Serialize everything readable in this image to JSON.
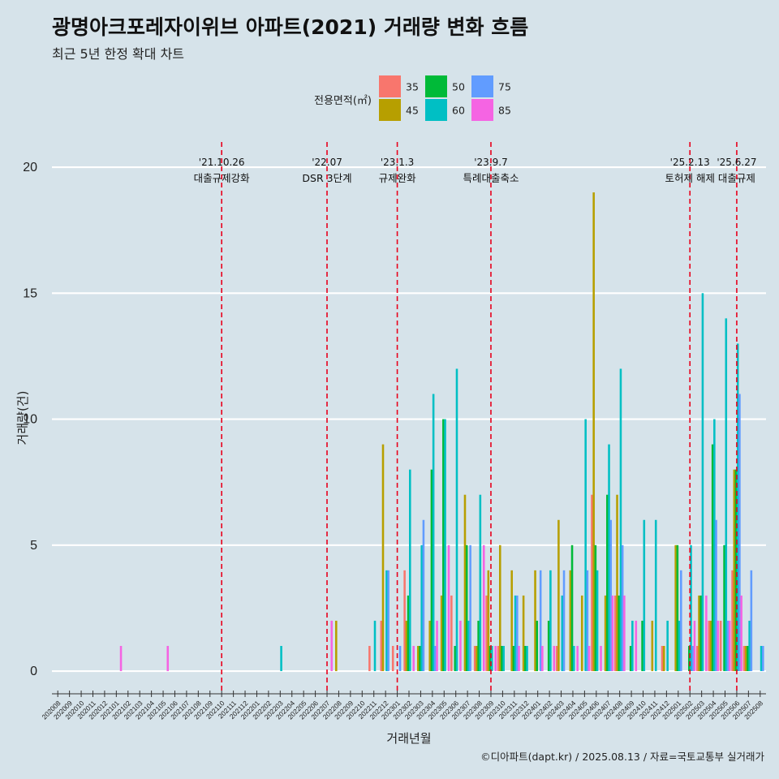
{
  "title": "광명아크포레자이위브 아파트(2021) 거래량 변화 흐름",
  "subtitle": "최근 5년 한정 확대 차트",
  "caption": "©디아파트(dapt.kr) / 2025.08.13 / 자료=국토교통부 실거래가",
  "chart_data": {
    "type": "bar",
    "xlabel": "거래년월",
    "ylabel": "거래량(건)",
    "ylim": [
      -0.9,
      21
    ],
    "yticks": [
      0,
      5,
      10,
      15,
      20
    ],
    "legend": {
      "title": "전용면적(㎡)",
      "position": "top",
      "entries": [
        {
          "name": "35",
          "color": "#F8766D"
        },
        {
          "name": "45",
          "color": "#B79F00"
        },
        {
          "name": "50",
          "color": "#00BA38"
        },
        {
          "name": "60",
          "color": "#00BFC4"
        },
        {
          "name": "75",
          "color": "#619CFF"
        },
        {
          "name": "85",
          "color": "#F564E3"
        }
      ]
    },
    "categories": [
      "202008",
      "202009",
      "202010",
      "202011",
      "202012",
      "202101",
      "202102",
      "202103",
      "202104",
      "202105",
      "202106",
      "202107",
      "202108",
      "202109",
      "202110",
      "202111",
      "202112",
      "202201",
      "202202",
      "202203",
      "202204",
      "202205",
      "202206",
      "202207",
      "202208",
      "202209",
      "202210",
      "202211",
      "202212",
      "202301",
      "202302",
      "202303",
      "202304",
      "202305",
      "202306",
      "202307",
      "202308",
      "202309",
      "202310",
      "202311",
      "202312",
      "202401",
      "202402",
      "202403",
      "202404",
      "202405",
      "202406",
      "202407",
      "202408",
      "202409",
      "202410",
      "202411",
      "202412",
      "202501",
      "202502",
      "202503",
      "202504",
      "202505",
      "202506",
      "202507",
      "202508"
    ],
    "series": [
      {
        "name": "35",
        "values": [
          0,
          0,
          0,
          0,
          0,
          0,
          0,
          0,
          0,
          0,
          0,
          0,
          0,
          0,
          0,
          0,
          0,
          0,
          0,
          0,
          0,
          0,
          0,
          0,
          0,
          0,
          0,
          1,
          2,
          1,
          4,
          0,
          0,
          0,
          3,
          0,
          1,
          3,
          1,
          0,
          0,
          0,
          0,
          1,
          0,
          0,
          7,
          0,
          3,
          0,
          0,
          0,
          1,
          0,
          0,
          1,
          2,
          2,
          4,
          1,
          0
        ]
      },
      {
        "name": "45",
        "values": [
          0,
          0,
          0,
          0,
          0,
          0,
          0,
          0,
          0,
          0,
          0,
          0,
          0,
          0,
          0,
          0,
          0,
          0,
          0,
          0,
          0,
          0,
          0,
          0,
          2,
          0,
          0,
          0,
          9,
          0,
          2,
          1,
          2,
          3,
          0,
          7,
          1,
          4,
          5,
          4,
          3,
          4,
          0,
          6,
          4,
          3,
          19,
          3,
          7,
          0,
          0,
          2,
          1,
          5,
          0,
          3,
          2,
          0,
          8,
          1,
          0
        ]
      },
      {
        "name": "50",
        "values": [
          0,
          0,
          0,
          0,
          0,
          0,
          0,
          0,
          0,
          0,
          0,
          0,
          0,
          0,
          0,
          0,
          0,
          0,
          0,
          0,
          0,
          0,
          0,
          0,
          0,
          0,
          0,
          0,
          0,
          0,
          3,
          1,
          8,
          10,
          1,
          5,
          2,
          1,
          1,
          1,
          1,
          2,
          2,
          0,
          5,
          0,
          5,
          7,
          3,
          1,
          2,
          0,
          0,
          5,
          1,
          3,
          9,
          5,
          8,
          1,
          0
        ]
      },
      {
        "name": "60",
        "values": [
          0,
          0,
          0,
          0,
          0,
          0,
          0,
          0,
          0,
          0,
          0,
          0,
          0,
          0,
          0,
          0,
          0,
          0,
          0,
          1,
          0,
          0,
          0,
          0,
          0,
          0,
          0,
          2,
          4,
          0,
          8,
          5,
          11,
          10,
          12,
          2,
          7,
          1,
          1,
          3,
          1,
          0,
          4,
          3,
          1,
          10,
          4,
          9,
          12,
          2,
          6,
          6,
          2,
          2,
          5,
          15,
          10,
          14,
          13,
          2,
          1
        ]
      },
      {
        "name": "75",
        "values": [
          0,
          0,
          0,
          0,
          0,
          0,
          0,
          0,
          0,
          0,
          0,
          0,
          0,
          0,
          0,
          0,
          0,
          0,
          0,
          0,
          0,
          0,
          0,
          0,
          0,
          0,
          0,
          0,
          4,
          1,
          0,
          6,
          1,
          0,
          0,
          5,
          0,
          0,
          0,
          3,
          0,
          4,
          0,
          4,
          0,
          4,
          0,
          6,
          5,
          0,
          0,
          0,
          0,
          4,
          1,
          0,
          6,
          2,
          11,
          4,
          1
        ]
      },
      {
        "name": "85",
        "values": [
          0,
          0,
          0,
          0,
          0,
          1,
          0,
          0,
          0,
          1,
          0,
          0,
          0,
          0,
          0,
          0,
          0,
          0,
          0,
          0,
          0,
          0,
          0,
          2,
          0,
          0,
          0,
          0,
          0,
          0,
          1,
          0,
          2,
          5,
          2,
          0,
          5,
          1,
          0,
          1,
          0,
          1,
          1,
          0,
          1,
          1,
          1,
          3,
          3,
          2,
          0,
          0,
          0,
          0,
          2,
          3,
          2,
          2,
          3,
          0,
          0
        ]
      }
    ],
    "annotations": [
      {
        "category": "202110",
        "date": "'21.10.26",
        "label": "대출규제강화"
      },
      {
        "category": "202207",
        "date": "'22.07",
        "label": "DSR 3단계"
      },
      {
        "category": "202301",
        "date": "'23.1.3",
        "label": "규제완화"
      },
      {
        "category": "202309",
        "date": "'23.9.7",
        "label": "특례대출축소"
      },
      {
        "category": "202502",
        "date": "'25.2.13",
        "label": "토허제 해제"
      },
      {
        "category": "202506",
        "date": "'25.6.27",
        "label": "대출규제"
      }
    ]
  }
}
